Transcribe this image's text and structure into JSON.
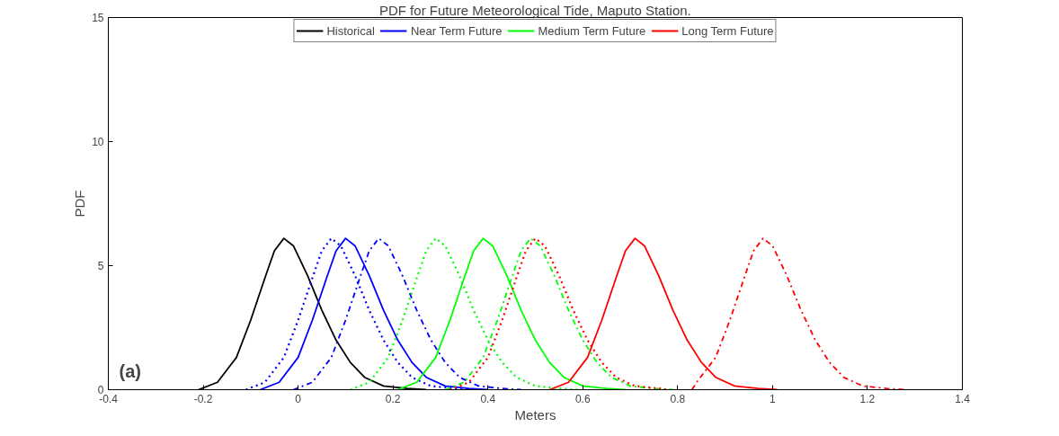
{
  "chart_data": {
    "type": "line",
    "title": "PDF for Future Meteorological Tide, Maputo Station.",
    "xlabel": "Meters",
    "ylabel": "PDF",
    "xlim": [
      -0.4,
      1.4
    ],
    "ylim": [
      0,
      15
    ],
    "xticks": [
      -0.4,
      -0.2,
      0,
      0.2,
      0.4,
      0.6,
      0.8,
      1,
      1.2,
      1.4
    ],
    "yticks": [
      0,
      5,
      10,
      15
    ],
    "grid": false,
    "legend": "top",
    "annotations": [
      "(a)"
    ],
    "series": [
      {
        "name": "Historical",
        "color": "#000000",
        "line_style": "solid",
        "x": [
          -0.21,
          -0.17,
          -0.13,
          -0.1,
          -0.07,
          -0.05,
          -0.03,
          -0.01,
          0.02,
          0.05,
          0.08,
          0.11,
          0.14,
          0.18,
          0.23,
          0.27
        ],
        "values": [
          0,
          0.3,
          1.3,
          2.8,
          4.5,
          5.6,
          6.1,
          5.8,
          4.6,
          3.2,
          2.0,
          1.1,
          0.5,
          0.15,
          0.05,
          0
        ]
      },
      {
        "color": "#0000ff",
        "line_style": "dotted",
        "x": [
          -0.11,
          -0.07,
          -0.03,
          0,
          0.03,
          0.05,
          0.07,
          0.09,
          0.12,
          0.15,
          0.18,
          0.21,
          0.24,
          0.28,
          0.33,
          0.37
        ],
        "values": [
          0,
          0.3,
          1.3,
          2.8,
          4.5,
          5.6,
          6.1,
          5.8,
          4.6,
          3.2,
          2.0,
          1.1,
          0.5,
          0.15,
          0.05,
          0
        ]
      },
      {
        "name": "Near Term Future",
        "color": "#0000ff",
        "line_style": "solid",
        "x": [
          -0.08,
          -0.04,
          0,
          0.03,
          0.06,
          0.08,
          0.1,
          0.12,
          0.15,
          0.18,
          0.21,
          0.24,
          0.27,
          0.31,
          0.36,
          0.4
        ],
        "values": [
          0,
          0.3,
          1.3,
          2.8,
          4.5,
          5.6,
          6.1,
          5.8,
          4.6,
          3.2,
          2.0,
          1.1,
          0.5,
          0.15,
          0.05,
          0
        ]
      },
      {
        "color": "#0000ff",
        "line_style": "dashdot",
        "x": [
          -0.01,
          0.03,
          0.07,
          0.1,
          0.13,
          0.15,
          0.17,
          0.19,
          0.22,
          0.25,
          0.28,
          0.31,
          0.34,
          0.38,
          0.43,
          0.47
        ],
        "values": [
          0,
          0.3,
          1.3,
          2.8,
          4.5,
          5.6,
          6.1,
          5.8,
          4.6,
          3.2,
          2.0,
          1.1,
          0.5,
          0.15,
          0.05,
          0
        ]
      },
      {
        "color": "#00ff00",
        "line_style": "dotted",
        "x": [
          0.11,
          0.15,
          0.19,
          0.22,
          0.25,
          0.27,
          0.29,
          0.31,
          0.34,
          0.37,
          0.4,
          0.43,
          0.46,
          0.5,
          0.55,
          0.59
        ],
        "values": [
          0,
          0.3,
          1.3,
          2.8,
          4.5,
          5.6,
          6.1,
          5.8,
          4.6,
          3.2,
          2.0,
          1.1,
          0.5,
          0.15,
          0.05,
          0
        ]
      },
      {
        "name": "Medium Term Future",
        "color": "#00ff00",
        "line_style": "solid",
        "x": [
          0.21,
          0.25,
          0.29,
          0.32,
          0.35,
          0.37,
          0.39,
          0.41,
          0.44,
          0.47,
          0.5,
          0.53,
          0.56,
          0.6,
          0.65,
          0.69
        ],
        "values": [
          0,
          0.3,
          1.3,
          2.8,
          4.5,
          5.6,
          6.1,
          5.8,
          4.6,
          3.2,
          2.0,
          1.1,
          0.5,
          0.15,
          0.05,
          0
        ]
      },
      {
        "color": "#00ff00",
        "line_style": "dashdot",
        "x": [
          0.31,
          0.35,
          0.39,
          0.42,
          0.45,
          0.47,
          0.49,
          0.51,
          0.54,
          0.57,
          0.6,
          0.63,
          0.66,
          0.7,
          0.75,
          0.79
        ],
        "values": [
          0,
          0.3,
          1.3,
          2.8,
          4.5,
          5.6,
          6.1,
          5.8,
          4.6,
          3.2,
          2.0,
          1.1,
          0.5,
          0.15,
          0.05,
          0
        ]
      },
      {
        "color": "#ff0000",
        "line_style": "dotted",
        "x": [
          0.32,
          0.36,
          0.4,
          0.43,
          0.46,
          0.48,
          0.5,
          0.52,
          0.55,
          0.58,
          0.61,
          0.64,
          0.67,
          0.71,
          0.76,
          0.78
        ],
        "values": [
          0,
          0.3,
          1.3,
          2.8,
          4.5,
          5.6,
          6.1,
          5.8,
          4.6,
          3.2,
          2.0,
          1.1,
          0.5,
          0.15,
          0.05,
          0
        ]
      },
      {
        "name": "Long Term Future",
        "color": "#ff0000",
        "line_style": "solid",
        "x": [
          0.53,
          0.57,
          0.61,
          0.64,
          0.67,
          0.69,
          0.71,
          0.73,
          0.76,
          0.79,
          0.82,
          0.85,
          0.88,
          0.92,
          0.97,
          1.01
        ],
        "values": [
          0,
          0.3,
          1.3,
          2.8,
          4.5,
          5.6,
          6.1,
          5.8,
          4.6,
          3.2,
          2.0,
          1.1,
          0.5,
          0.15,
          0.05,
          0
        ]
      },
      {
        "color": "#ff0000",
        "line_style": "dashdot",
        "x": [
          0.83,
          0.84,
          0.88,
          0.91,
          0.94,
          0.96,
          0.98,
          1.0,
          1.03,
          1.06,
          1.09,
          1.12,
          1.15,
          1.19,
          1.24,
          1.28
        ],
        "values": [
          0,
          0.3,
          1.3,
          2.8,
          4.5,
          5.6,
          6.1,
          5.8,
          4.6,
          3.2,
          2.0,
          1.1,
          0.5,
          0.15,
          0.05,
          0
        ]
      }
    ]
  }
}
